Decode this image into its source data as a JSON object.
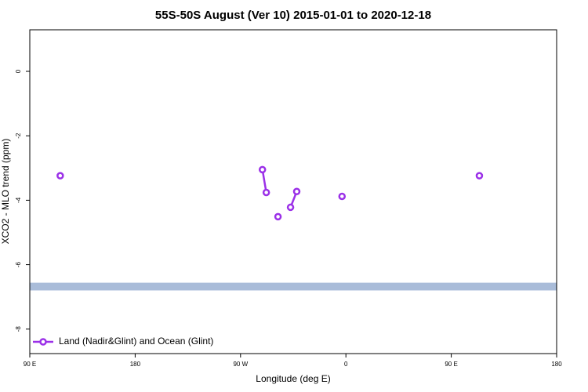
{
  "chart_data": {
    "type": "line",
    "title": "55S-50S August (Ver 10)   2015-01-01 to 2020-12-18",
    "x_label": "Longitude (deg E)",
    "y_label": "XCO2 - MLO trend (ppm)",
    "xlim": [
      -270,
      180
    ],
    "xticks": [
      {
        "value": -270,
        "label": "90 E"
      },
      {
        "value": -180,
        "label": "180"
      },
      {
        "value": -90,
        "label": "90 W"
      },
      0,
      {
        "value": 90,
        "label": "90 E"
      },
      180
    ],
    "ylim": [
      -8.76,
      1.29
    ],
    "yticks": [
      0,
      -2,
      -4,
      -6,
      -8
    ],
    "band": [
      -6.8,
      -6.56
    ],
    "band_color": "#a9bcd9",
    "legend_position": "bottom-left",
    "series": [
      {
        "name": "Land (Nadir&Glint) and Ocean (Glint)",
        "color": "#9b30e8",
        "x": [
          -244,
          null,
          -71.3,
          -68,
          null,
          -58,
          null,
          -47.3,
          -42,
          null,
          -3.3,
          null,
          114
        ],
        "values": [
          -3.24,
          null,
          -3.05,
          -3.76,
          null,
          -4.51,
          null,
          -4.22,
          -3.73,
          null,
          -3.88,
          null,
          -3.24
        ]
      }
    ]
  }
}
